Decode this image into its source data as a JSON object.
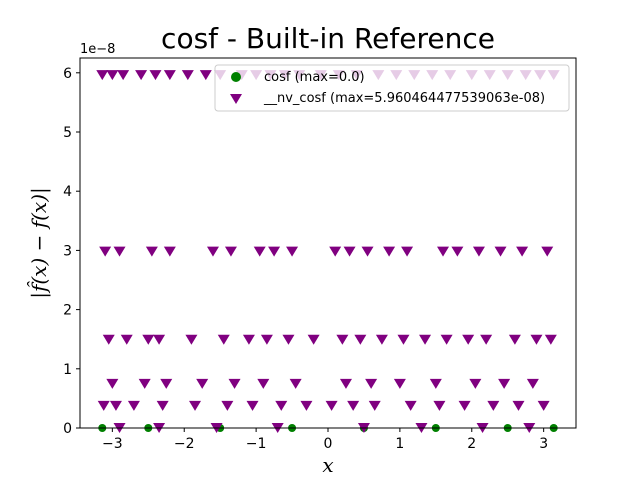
{
  "chart_data": {
    "type": "scatter",
    "title": "cosf - Built-in Reference",
    "xlabel": "x",
    "ylabel": "|f̂(x) − f(x)|",
    "y_offset_label": "1e−8",
    "xlim": [
      -3.45,
      3.45
    ],
    "ylim": [
      0,
      6.25
    ],
    "xticks": [
      -3,
      -2,
      -1,
      0,
      1,
      2,
      3
    ],
    "xtick_labels": [
      "−3",
      "−2",
      "−1",
      "0",
      "1",
      "2",
      "3"
    ],
    "yticks": [
      0,
      1,
      2,
      3,
      4,
      5,
      6
    ],
    "ytick_labels": [
      "0",
      "1",
      "2",
      "3",
      "4",
      "5",
      "6"
    ],
    "grid": false,
    "legend_position": "top-right",
    "error_levels": [
      0,
      0.373,
      0.745,
      1.49,
      2.98,
      5.96
    ],
    "series": [
      {
        "name": "cosf (max=0.0)",
        "marker": "circle",
        "color": "#008000",
        "x": [
          -3.14,
          -2.5,
          -1.5,
          -0.5,
          0.5,
          1.5,
          2.5,
          3.14
        ],
        "y": [
          0,
          0,
          0,
          0,
          0,
          0,
          0,
          0
        ]
      },
      {
        "name": "__nv_cosf (max=5.960464477539063e-08)",
        "marker": "triangle-down",
        "color": "#800080",
        "x": [
          -3.14,
          -3.0,
          -2.85,
          -2.6,
          -2.4,
          -2.2,
          -1.95,
          -1.7,
          -1.5,
          -1.2,
          -1.0,
          -0.8,
          -0.6,
          -0.4,
          -0.1,
          0.15,
          0.4,
          0.7,
          0.95,
          1.2,
          1.45,
          1.7,
          2.0,
          2.25,
          2.5,
          2.75,
          2.95,
          3.14,
          -3.1,
          -2.9,
          -2.45,
          -2.2,
          -1.6,
          -1.35,
          -0.95,
          -0.75,
          -0.5,
          0.1,
          0.3,
          0.55,
          0.85,
          1.1,
          1.6,
          1.8,
          2.1,
          2.4,
          2.7,
          3.05,
          -3.05,
          -2.8,
          -2.5,
          -2.35,
          -1.9,
          -1.45,
          -1.1,
          -0.85,
          -0.55,
          -0.2,
          0.2,
          0.45,
          0.75,
          1.05,
          1.35,
          1.65,
          1.95,
          2.2,
          2.6,
          2.9,
          3.1,
          -3.0,
          -2.55,
          -2.25,
          -1.75,
          -1.3,
          -0.9,
          -0.45,
          0.25,
          0.6,
          1.0,
          1.5,
          2.05,
          2.45,
          2.85,
          -3.12,
          -2.95,
          -2.7,
          -2.3,
          -1.85,
          -1.4,
          -1.05,
          -0.65,
          -0.3,
          0.05,
          0.35,
          0.65,
          1.15,
          1.55,
          1.9,
          2.3,
          2.65,
          3.0,
          -2.9,
          -2.35,
          -1.55,
          -0.7,
          0.5,
          1.3,
          2.15,
          2.8
        ],
        "y": [
          5.96,
          5.96,
          5.96,
          5.96,
          5.96,
          5.96,
          5.96,
          5.96,
          5.96,
          5.96,
          5.96,
          5.96,
          5.96,
          5.96,
          5.96,
          5.96,
          5.96,
          5.96,
          5.96,
          5.96,
          5.96,
          5.96,
          5.96,
          5.96,
          5.96,
          5.96,
          5.96,
          5.96,
          2.98,
          2.98,
          2.98,
          2.98,
          2.98,
          2.98,
          2.98,
          2.98,
          2.98,
          2.98,
          2.98,
          2.98,
          2.98,
          2.98,
          2.98,
          2.98,
          2.98,
          2.98,
          2.98,
          2.98,
          1.49,
          1.49,
          1.49,
          1.49,
          1.49,
          1.49,
          1.49,
          1.49,
          1.49,
          1.49,
          1.49,
          1.49,
          1.49,
          1.49,
          1.49,
          1.49,
          1.49,
          1.49,
          1.49,
          1.49,
          1.49,
          0.745,
          0.745,
          0.745,
          0.745,
          0.745,
          0.745,
          0.745,
          0.745,
          0.745,
          0.745,
          0.745,
          0.745,
          0.745,
          0.745,
          0.373,
          0.373,
          0.373,
          0.373,
          0.373,
          0.373,
          0.373,
          0.373,
          0.373,
          0.373,
          0.373,
          0.373,
          0.373,
          0.373,
          0.373,
          0.373,
          0.373,
          0.373,
          0,
          0,
          0,
          0,
          0,
          0,
          0,
          0
        ]
      }
    ]
  }
}
